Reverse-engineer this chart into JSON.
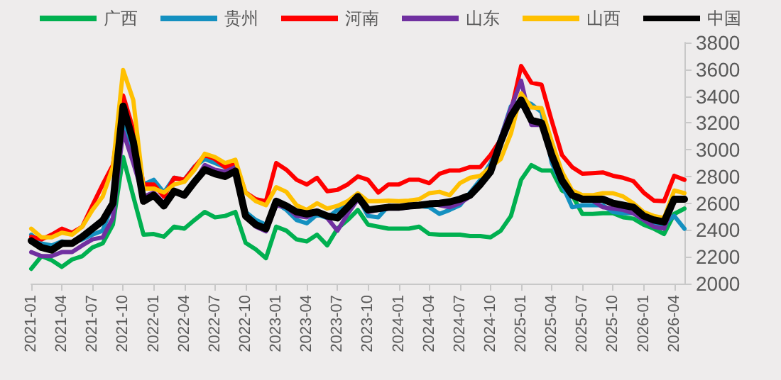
{
  "chart_data": {
    "type": "line",
    "categories": [
      "2021-01",
      null,
      null,
      "2021-04",
      null,
      null,
      "2021-07",
      null,
      null,
      "2021-10",
      null,
      null,
      "2022-01",
      null,
      null,
      "2022-04",
      null,
      null,
      "2022-07",
      null,
      null,
      "2022-10",
      null,
      null,
      "2023-01",
      null,
      null,
      "2023-04",
      null,
      null,
      "2023-07",
      null,
      null,
      "2023-10",
      null,
      null,
      "2024-01",
      null,
      null,
      "2024-04",
      null,
      null,
      "2024-07",
      null,
      null,
      "2024-10",
      null,
      null,
      "2025-01",
      null,
      null,
      "2025-04",
      null,
      null,
      "2025-07",
      null,
      null,
      "2025-10",
      null,
      null,
      "2026-01",
      null,
      null,
      "2026-04",
      null
    ],
    "series": [
      {
        "name": "广西",
        "color": "#00b050",
        "values": [
          2110,
          2205,
          2175,
          2125,
          2180,
          2205,
          2270,
          2300,
          2440,
          2945,
          2650,
          2365,
          2370,
          2350,
          2425,
          2410,
          2475,
          2535,
          2495,
          2505,
          2535,
          2305,
          2255,
          2190,
          2425,
          2395,
          2330,
          2315,
          2365,
          2285,
          2410,
          2475,
          2550,
          2440,
          2425,
          2410,
          2410,
          2410,
          2425,
          2370,
          2365,
          2365,
          2365,
          2355,
          2355,
          2345,
          2395,
          2505,
          2775,
          2885,
          2845,
          2845,
          2695,
          2660,
          2520,
          2520,
          2525,
          2525,
          2495,
          2485,
          2440,
          2410,
          2370,
          2520,
          2560
        ]
      },
      {
        "name": "贵州",
        "color": "#1490c0",
        "values": [
          2365,
          2300,
          2285,
          2315,
          2300,
          2330,
          2365,
          2395,
          2600,
          3215,
          2960,
          2740,
          2775,
          2680,
          2790,
          2775,
          2875,
          2930,
          2900,
          2870,
          2885,
          2535,
          2475,
          2440,
          2600,
          2550,
          2475,
          2450,
          2515,
          2490,
          2550,
          2580,
          2650,
          2505,
          2495,
          2580,
          2570,
          2570,
          2580,
          2570,
          2520,
          2550,
          2585,
          2680,
          2775,
          2900,
          3090,
          3325,
          3370,
          3340,
          3280,
          2900,
          2740,
          2570,
          2585,
          2585,
          2585,
          2535,
          2525,
          2525,
          2475,
          2435,
          2445,
          2505,
          2410
        ]
      },
      {
        "name": "河南",
        "color": "#ff0000",
        "values": [
          2350,
          2330,
          2365,
          2410,
          2380,
          2425,
          2585,
          2740,
          2885,
          3405,
          3150,
          2740,
          2740,
          2650,
          2790,
          2775,
          2870,
          2960,
          2930,
          2870,
          2900,
          2680,
          2630,
          2615,
          2900,
          2850,
          2775,
          2740,
          2790,
          2690,
          2700,
          2740,
          2800,
          2775,
          2680,
          2740,
          2740,
          2775,
          2775,
          2750,
          2820,
          2845,
          2845,
          2870,
          2870,
          2960,
          3075,
          3280,
          3625,
          3500,
          3485,
          3215,
          2960,
          2870,
          2820,
          2825,
          2830,
          2805,
          2790,
          2765,
          2680,
          2620,
          2615,
          2805,
          2775
        ]
      },
      {
        "name": "山东",
        "color": "#7030a0",
        "values": [
          2235,
          2205,
          2205,
          2235,
          2235,
          2285,
          2330,
          2345,
          2490,
          3135,
          2900,
          2650,
          2680,
          2600,
          2700,
          2650,
          2760,
          2885,
          2850,
          2835,
          2870,
          2505,
          2425,
          2390,
          2585,
          2570,
          2505,
          2495,
          2535,
          2490,
          2395,
          2520,
          2630,
          2535,
          2550,
          2560,
          2560,
          2570,
          2580,
          2600,
          2585,
          2570,
          2600,
          2650,
          2740,
          2870,
          3090,
          3310,
          3515,
          3185,
          3185,
          2930,
          2760,
          2650,
          2630,
          2620,
          2570,
          2560,
          2550,
          2525,
          2475,
          2425,
          2410,
          2615,
          2630
        ]
      },
      {
        "name": "山西",
        "color": "#ffc000",
        "values": [
          2410,
          2345,
          2345,
          2380,
          2365,
          2425,
          2550,
          2650,
          2870,
          3595,
          3370,
          2710,
          2710,
          2680,
          2740,
          2760,
          2850,
          2970,
          2945,
          2900,
          2925,
          2680,
          2615,
          2585,
          2720,
          2685,
          2585,
          2550,
          2600,
          2560,
          2580,
          2615,
          2675,
          2615,
          2615,
          2620,
          2615,
          2620,
          2630,
          2675,
          2685,
          2660,
          2750,
          2790,
          2805,
          2870,
          2930,
          3120,
          3420,
          3315,
          3310,
          3060,
          2835,
          2695,
          2660,
          2660,
          2675,
          2675,
          2650,
          2600,
          2535,
          2505,
          2490,
          2695,
          2675
        ]
      },
      {
        "name": "中国",
        "color": "#000000",
        "values": [
          2320,
          2270,
          2250,
          2300,
          2300,
          2350,
          2410,
          2470,
          2600,
          3325,
          3060,
          2615,
          2660,
          2580,
          2690,
          2660,
          2760,
          2850,
          2820,
          2800,
          2840,
          2505,
          2440,
          2410,
          2615,
          2580,
          2535,
          2520,
          2535,
          2505,
          2490,
          2570,
          2650,
          2550,
          2560,
          2570,
          2570,
          2580,
          2585,
          2595,
          2600,
          2610,
          2630,
          2660,
          2740,
          2835,
          3060,
          3250,
          3370,
          3220,
          3200,
          2960,
          2770,
          2660,
          2630,
          2630,
          2630,
          2600,
          2585,
          2570,
          2505,
          2475,
          2460,
          2630,
          2630
        ]
      }
    ],
    "ylim": [
      2000,
      3800
    ],
    "yticks": [
      2000,
      2200,
      2400,
      2600,
      2800,
      3000,
      3200,
      3400,
      3600,
      3800
    ],
    "legend": "top",
    "grid": false,
    "marker": "none",
    "line_style": "solid"
  }
}
